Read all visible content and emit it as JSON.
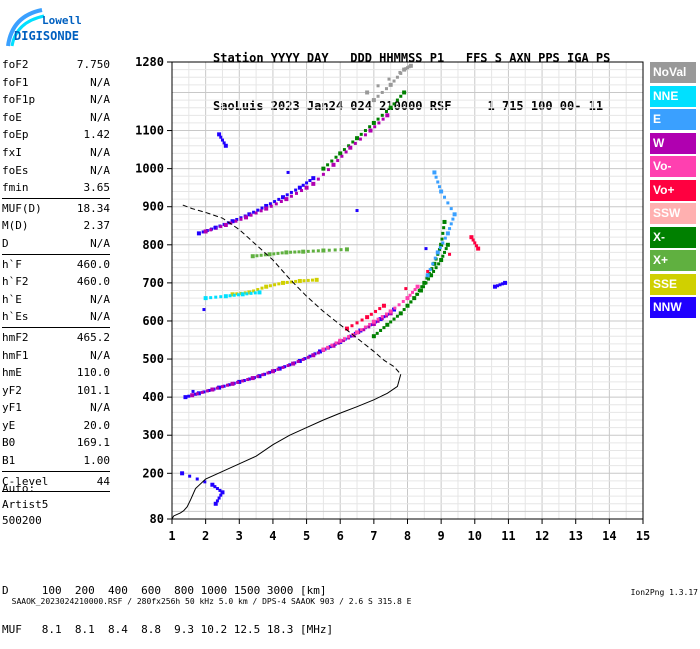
{
  "logo": {
    "line1": "Lowell",
    "line2": "DIGISONDE"
  },
  "header": {
    "line1": "Station YYYY DAY   DDD HHMMSS P1   FFS S AXN PPS IGA PS",
    "line2": "SaoLuis 2023 Jan24 024 210000 RSF     1 715 100 00- 11"
  },
  "params": [
    {
      "k": "foF2",
      "v": "7.750"
    },
    {
      "k": "foF1",
      "v": "N/A"
    },
    {
      "k": "foF1p",
      "v": "N/A"
    },
    {
      "k": "foE",
      "v": "N/A"
    },
    {
      "k": "foEp",
      "v": "1.42"
    },
    {
      "k": "fxI",
      "v": "N/A"
    },
    {
      "k": "foEs",
      "v": "N/A"
    },
    {
      "k": "fmin",
      "v": "3.65"
    },
    {
      "sep": true
    },
    {
      "k": "MUF(D)",
      "v": "18.34"
    },
    {
      "k": "M(D)",
      "v": "2.37"
    },
    {
      "k": "D",
      "v": "N/A"
    },
    {
      "sep": true
    },
    {
      "k": "h`F",
      "v": "460.0"
    },
    {
      "k": "h`F2",
      "v": "460.0"
    },
    {
      "k": "h`E",
      "v": "N/A"
    },
    {
      "k": "h`Es",
      "v": "N/A"
    },
    {
      "sep": true
    },
    {
      "k": "hmF2",
      "v": "465.2"
    },
    {
      "k": "hmF1",
      "v": "N/A"
    },
    {
      "k": "hmE",
      "v": "110.0"
    },
    {
      "k": "yF2",
      "v": "101.1"
    },
    {
      "k": "yF1",
      "v": "N/A"
    },
    {
      "k": "yE",
      "v": "20.0"
    },
    {
      "k": "B0",
      "v": "169.1"
    },
    {
      "k": "B1",
      "v": "1.00"
    },
    {
      "sep": true
    },
    {
      "k": "C-level",
      "v": "44"
    },
    {
      "sep": true
    }
  ],
  "auto": {
    "l1": "Auto:",
    "l2": "Artist5",
    "l3": "500200"
  },
  "legend": [
    {
      "label": "NoVal",
      "color": "#999999"
    },
    {
      "label": "NNE",
      "color": "#00e0ff"
    },
    {
      "label": "E",
      "color": "#3aa0ff"
    },
    {
      "label": "W",
      "color": "#b000b0"
    },
    {
      "label": "Vo-",
      "color": "#ff40b0"
    },
    {
      "label": "Vo+",
      "color": "#ff0040"
    },
    {
      "label": "SSW",
      "color": "#ffb0b0"
    },
    {
      "label": "X-",
      "color": "#008000"
    },
    {
      "label": "X+",
      "color": "#60b040"
    },
    {
      "label": "SSE",
      "color": "#d0d000"
    },
    {
      "label": "NNW",
      "color": "#2000ff"
    }
  ],
  "bottom": {
    "d_line": "D     100  200  400  600  800 1000 1500 3000 [km]",
    "muf_line": "MUF   8.1  8.1  8.4  8.8  9.3 10.2 12.5 18.3 [MHz]"
  },
  "footer": {
    "left": "SAAOK_2023024210000.RSF / 280fx256h 50 kHz 5.0 km / DPS-4 SAAOK 903 / 2.6 S 315.8 E",
    "right": "Ion2Png 1.3.17"
  },
  "chart_data": {
    "type": "scatter",
    "xlim": [
      1,
      15
    ],
    "ylim": [
      80,
      1280
    ],
    "x_ticks": [
      1,
      2,
      3,
      4,
      5,
      6,
      7,
      8,
      9,
      10,
      11,
      12,
      13,
      14,
      15
    ],
    "y_ticks": [
      80,
      200,
      300,
      400,
      500,
      600,
      700,
      800,
      900,
      1000,
      1100,
      1280
    ],
    "grid": true,
    "legend_position": "right",
    "profile_line": [
      [
        1.0,
        80
      ],
      [
        1.05,
        88
      ],
      [
        1.15,
        92
      ],
      [
        1.25,
        96
      ],
      [
        1.35,
        102
      ],
      [
        1.45,
        112
      ],
      [
        1.55,
        130
      ],
      [
        1.7,
        160
      ],
      [
        2.0,
        185
      ],
      [
        2.5,
        205
      ],
      [
        3.0,
        225
      ],
      [
        3.5,
        245
      ],
      [
        4.0,
        275
      ],
      [
        4.5,
        300
      ],
      [
        5.0,
        320
      ],
      [
        5.5,
        340
      ],
      [
        6.0,
        358
      ],
      [
        6.5,
        375
      ],
      [
        7.0,
        393
      ],
      [
        7.4,
        410
      ],
      [
        7.7,
        428
      ],
      [
        7.8,
        460
      ]
    ],
    "dashed_line": [
      [
        7.75,
        465
      ],
      [
        7.6,
        480
      ],
      [
        7.3,
        497
      ],
      [
        7.0,
        520
      ],
      [
        6.5,
        555
      ],
      [
        6.0,
        590
      ],
      [
        5.5,
        625
      ],
      [
        5.0,
        665
      ],
      [
        4.5,
        710
      ],
      [
        4.0,
        760
      ],
      [
        3.5,
        800
      ],
      [
        3.0,
        840
      ],
      [
        2.5,
        870
      ],
      [
        2.0,
        885
      ],
      [
        1.6,
        895
      ],
      [
        1.3,
        905
      ]
    ],
    "traces": [
      {
        "color": "#2000ff",
        "points": [
          [
            1.4,
            400
          ],
          [
            1.8,
            410
          ],
          [
            2.4,
            425
          ],
          [
            3.0,
            440
          ],
          [
            3.6,
            455
          ],
          [
            4.2,
            475
          ],
          [
            4.8,
            495
          ],
          [
            5.4,
            520
          ],
          [
            6.0,
            545
          ],
          [
            6.6,
            575
          ],
          [
            7.2,
            605
          ],
          [
            7.6,
            630
          ]
        ]
      },
      {
        "color": "#b000b0",
        "points": [
          [
            1.6,
            405
          ],
          [
            2.2,
            420
          ],
          [
            2.8,
            435
          ],
          [
            3.4,
            450
          ],
          [
            4.0,
            468
          ],
          [
            4.6,
            488
          ],
          [
            5.2,
            510
          ],
          [
            5.8,
            535
          ],
          [
            6.4,
            562
          ],
          [
            7.0,
            592
          ],
          [
            7.5,
            620
          ]
        ]
      },
      {
        "color": "#ff40b0",
        "points": [
          [
            5.5,
            525
          ],
          [
            6.0,
            548
          ],
          [
            6.5,
            570
          ],
          [
            7.0,
            598
          ],
          [
            7.5,
            625
          ],
          [
            8.0,
            660
          ],
          [
            8.3,
            690
          ]
        ]
      },
      {
        "color": "#2000ff",
        "points": [
          [
            1.8,
            830
          ],
          [
            2.3,
            845
          ],
          [
            2.8,
            862
          ],
          [
            3.3,
            880
          ],
          [
            3.8,
            902
          ],
          [
            4.3,
            925
          ],
          [
            4.8,
            950
          ],
          [
            5.2,
            975
          ]
        ]
      },
      {
        "color": "#b000b0",
        "points": [
          [
            2.0,
            835
          ],
          [
            2.6,
            852
          ],
          [
            3.2,
            872
          ],
          [
            3.8,
            895
          ],
          [
            4.4,
            920
          ],
          [
            5.0,
            950
          ]
        ]
      },
      {
        "color": "#008000",
        "points": [
          [
            7.0,
            560
          ],
          [
            7.4,
            590
          ],
          [
            7.8,
            620
          ],
          [
            8.2,
            660
          ],
          [
            8.5,
            700
          ],
          [
            8.8,
            750
          ],
          [
            9.0,
            800
          ],
          [
            9.1,
            860
          ]
        ]
      },
      {
        "color": "#008000",
        "points": [
          [
            8.0,
            640
          ],
          [
            8.4,
            680
          ],
          [
            8.7,
            720
          ],
          [
            9.0,
            760
          ],
          [
            9.2,
            800
          ]
        ]
      },
      {
        "color": "#3aa0ff",
        "points": [
          [
            8.6,
            720
          ],
          [
            8.9,
            780
          ],
          [
            9.2,
            830
          ],
          [
            9.4,
            880
          ],
          [
            9.0,
            940
          ],
          [
            8.8,
            990
          ]
        ]
      },
      {
        "color": "#d0d000",
        "points": [
          [
            2.8,
            670
          ],
          [
            3.3,
            675
          ],
          [
            3.8,
            690
          ],
          [
            4.3,
            700
          ],
          [
            4.8,
            705
          ],
          [
            5.3,
            708
          ]
        ]
      },
      {
        "color": "#60b040",
        "points": [
          [
            3.4,
            770
          ],
          [
            3.9,
            775
          ],
          [
            4.4,
            780
          ],
          [
            4.9,
            782
          ],
          [
            5.5,
            785
          ],
          [
            6.2,
            788
          ]
        ]
      },
      {
        "color": "#00e0ff",
        "points": [
          [
            2.0,
            660
          ],
          [
            2.6,
            665
          ],
          [
            3.1,
            670
          ],
          [
            3.6,
            675
          ]
        ]
      },
      {
        "color": "#008000",
        "points": [
          [
            5.5,
            1000
          ],
          [
            6.0,
            1040
          ],
          [
            6.5,
            1080
          ],
          [
            7.0,
            1120
          ],
          [
            7.5,
            1160
          ],
          [
            7.9,
            1200
          ]
        ]
      },
      {
        "color": "#b000b0",
        "points": [
          [
            5.2,
            960
          ],
          [
            5.8,
            1010
          ],
          [
            6.3,
            1055
          ],
          [
            6.9,
            1100
          ],
          [
            7.4,
            1140
          ]
        ]
      },
      {
        "color": "#999999",
        "points": [
          [
            7.0,
            1180
          ],
          [
            7.5,
            1220
          ],
          [
            7.9,
            1260
          ],
          [
            8.1,
            1270
          ],
          [
            6.8,
            1200
          ]
        ]
      },
      {
        "color": "#ff0040",
        "points": [
          [
            6.2,
            580
          ],
          [
            6.8,
            610
          ],
          [
            7.3,
            640
          ],
          [
            9.9,
            820
          ],
          [
            10.1,
            790
          ]
        ]
      },
      {
        "color": "#2000ff",
        "points": [
          [
            2.3,
            120
          ],
          [
            2.5,
            150
          ],
          [
            2.2,
            170
          ],
          [
            1.3,
            200
          ],
          [
            2.6,
            1060
          ],
          [
            2.4,
            1090
          ],
          [
            10.6,
            690
          ],
          [
            10.9,
            700
          ]
        ]
      }
    ]
  }
}
